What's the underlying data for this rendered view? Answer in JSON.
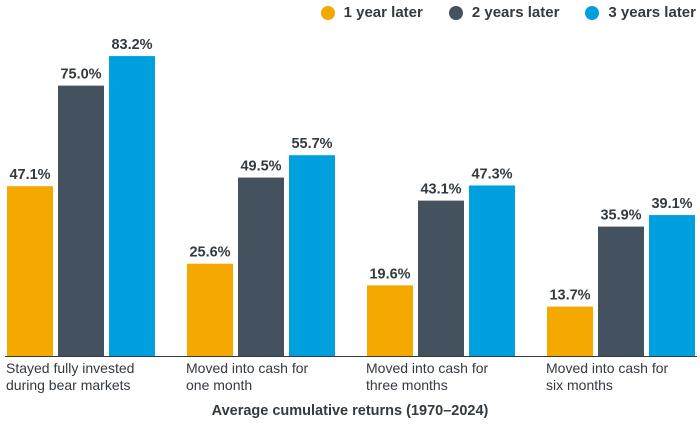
{
  "colors": {
    "series_1": "#f5a800",
    "series_2": "#44525f",
    "series_3": "#00a0df",
    "text": "#333a40",
    "axis": "#333a40"
  },
  "chart_data": {
    "type": "bar",
    "title": "",
    "xlabel": "Average cumulative returns (1970–2024)",
    "ylabel": "",
    "ylim": [
      0,
      90
    ],
    "grid": false,
    "legend_position": "top-right",
    "value_format": "percent-one-decimal",
    "categories": [
      [
        "Stayed fully invested",
        "during bear markets"
      ],
      [
        "Moved into cash for",
        "one month"
      ],
      [
        "Moved into cash for",
        "three months"
      ],
      [
        "Moved into cash for",
        "six months"
      ]
    ],
    "series": [
      {
        "name": "1 year later",
        "color": "#f5a800",
        "values": [
          47.1,
          25.6,
          19.6,
          13.7
        ],
        "labels": [
          "47.1%",
          "25.6%",
          "19.6%",
          "13.7%"
        ]
      },
      {
        "name": "2 years later",
        "color": "#44525f",
        "values": [
          75.0,
          49.5,
          43.1,
          35.9
        ],
        "labels": [
          "75.0%",
          "49.5%",
          "43.1%",
          "35.9%"
        ]
      },
      {
        "name": "3 years later",
        "color": "#00a0df",
        "values": [
          83.2,
          55.7,
          47.3,
          39.1
        ],
        "labels": [
          "83.2%",
          "55.7%",
          "47.3%",
          "39.1%"
        ]
      }
    ]
  }
}
